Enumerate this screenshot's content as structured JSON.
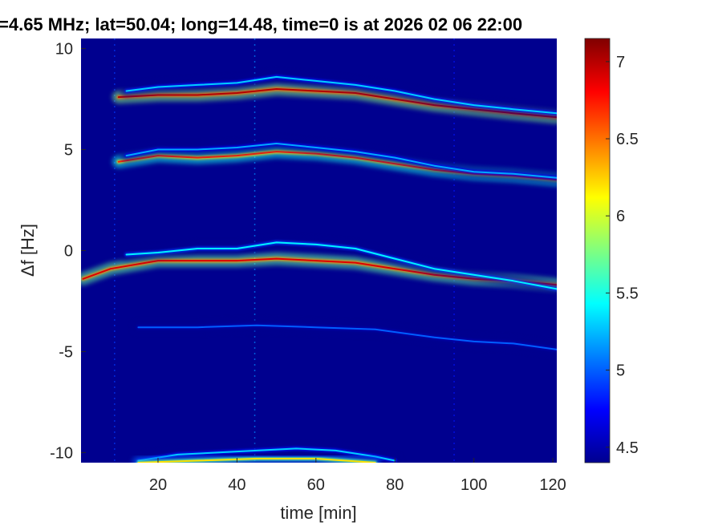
{
  "chart_data": {
    "type": "heatmap",
    "title": "=4.65 MHz;  lat=50.04; long=14.48, time=0 is at 2026 02 06 22:00",
    "xlabel": "time [min]",
    "ylabel": "Δf [Hz]",
    "xlim": [
      0.5,
      121
    ],
    "ylim": [
      -10.5,
      10.5
    ],
    "x_ticks": [
      {
        "value": 20,
        "label": "20"
      },
      {
        "value": 40,
        "label": "40"
      },
      {
        "value": 60,
        "label": "60"
      },
      {
        "value": 80,
        "label": "80"
      },
      {
        "value": 100,
        "label": "100"
      },
      {
        "value": 120,
        "label": "120"
      }
    ],
    "y_ticks": [
      {
        "value": 10,
        "label": "10"
      },
      {
        "value": 5,
        "label": "5"
      },
      {
        "value": 0,
        "label": "0"
      },
      {
        "value": -5,
        "label": "-5"
      },
      {
        "value": -10,
        "label": "-10"
      }
    ],
    "colorbar": {
      "colormap": "jet",
      "clim": [
        4.4,
        7.15
      ],
      "ticks": [
        {
          "value": 7,
          "label": "7"
        },
        {
          "value": 6.5,
          "label": "6.5"
        },
        {
          "value": 6,
          "label": "6"
        },
        {
          "value": 5.5,
          "label": "5.5"
        },
        {
          "value": 5,
          "label": "5"
        },
        {
          "value": 4.5,
          "label": "4.5"
        }
      ]
    },
    "background_color": "#00008f",
    "traces": [
      {
        "name": "",
        "intensity": 7.0,
        "points": [
          [
            10,
            7.6
          ],
          [
            20,
            7.7
          ],
          [
            30,
            7.7
          ],
          [
            40,
            7.8
          ],
          [
            50,
            8.0
          ],
          [
            60,
            7.9
          ],
          [
            70,
            7.8
          ],
          [
            80,
            7.5
          ],
          [
            90,
            7.2
          ],
          [
            100,
            7.0
          ],
          [
            110,
            6.8
          ],
          [
            121,
            6.6
          ]
        ]
      },
      {
        "name": "",
        "intensity": 5.3,
        "points": [
          [
            12,
            7.9
          ],
          [
            20,
            8.1
          ],
          [
            30,
            8.2
          ],
          [
            40,
            8.3
          ],
          [
            50,
            8.6
          ],
          [
            60,
            8.4
          ],
          [
            70,
            8.2
          ],
          [
            80,
            7.9
          ],
          [
            90,
            7.5
          ],
          [
            100,
            7.2
          ],
          [
            110,
            7.0
          ],
          [
            121,
            6.8
          ]
        ]
      },
      {
        "name": "",
        "intensity": 6.7,
        "points": [
          [
            10,
            4.4
          ],
          [
            20,
            4.7
          ],
          [
            30,
            4.6
          ],
          [
            40,
            4.7
          ],
          [
            50,
            4.9
          ],
          [
            60,
            4.8
          ],
          [
            70,
            4.6
          ],
          [
            80,
            4.3
          ],
          [
            90,
            4.0
          ],
          [
            100,
            3.8
          ],
          [
            110,
            3.7
          ],
          [
            121,
            3.5
          ]
        ]
      },
      {
        "name": "",
        "intensity": 5.2,
        "points": [
          [
            12,
            4.7
          ],
          [
            20,
            5.0
          ],
          [
            30,
            5.0
          ],
          [
            40,
            5.1
          ],
          [
            50,
            5.3
          ],
          [
            60,
            5.1
          ],
          [
            70,
            4.9
          ],
          [
            80,
            4.6
          ],
          [
            90,
            4.2
          ],
          [
            100,
            3.9
          ],
          [
            110,
            3.8
          ],
          [
            121,
            3.6
          ]
        ]
      },
      {
        "name": "",
        "intensity": 6.9,
        "points": [
          [
            1,
            -1.4
          ],
          [
            8,
            -0.9
          ],
          [
            20,
            -0.5
          ],
          [
            30,
            -0.5
          ],
          [
            40,
            -0.5
          ],
          [
            50,
            -0.4
          ],
          [
            60,
            -0.5
          ],
          [
            70,
            -0.6
          ],
          [
            80,
            -0.9
          ],
          [
            90,
            -1.2
          ],
          [
            100,
            -1.4
          ],
          [
            110,
            -1.5
          ],
          [
            121,
            -1.7
          ]
        ]
      },
      {
        "name": "",
        "intensity": 5.4,
        "points": [
          [
            12,
            -0.2
          ],
          [
            20,
            -0.1
          ],
          [
            30,
            0.1
          ],
          [
            40,
            0.1
          ],
          [
            50,
            0.4
          ],
          [
            60,
            0.3
          ],
          [
            70,
            0.1
          ],
          [
            80,
            -0.4
          ],
          [
            90,
            -0.9
          ],
          [
            100,
            -1.2
          ],
          [
            110,
            -1.5
          ],
          [
            121,
            -1.9
          ]
        ]
      },
      {
        "name": "",
        "intensity": 5.0,
        "points": [
          [
            15,
            -3.8
          ],
          [
            30,
            -3.8
          ],
          [
            45,
            -3.7
          ],
          [
            60,
            -3.8
          ],
          [
            75,
            -3.9
          ],
          [
            90,
            -4.3
          ],
          [
            100,
            -4.5
          ],
          [
            110,
            -4.6
          ],
          [
            121,
            -4.9
          ]
        ]
      },
      {
        "name": "",
        "intensity": 5.3,
        "points": [
          [
            15,
            -10.4
          ],
          [
            25,
            -10.1
          ],
          [
            35,
            -10.0
          ],
          [
            45,
            -9.9
          ],
          [
            55,
            -9.8
          ],
          [
            65,
            -9.9
          ],
          [
            75,
            -10.2
          ],
          [
            80,
            -10.4
          ]
        ]
      },
      {
        "name": "",
        "intensity": 6.2,
        "points": [
          [
            15,
            -10.5
          ],
          [
            30,
            -10.4
          ],
          [
            45,
            -10.3
          ],
          [
            60,
            -10.3
          ],
          [
            75,
            -10.5
          ]
        ]
      }
    ],
    "vertical_artifacts": [
      {
        "x": 9,
        "intensity": 4.9
      },
      {
        "x": 44.5,
        "intensity": 5.1
      },
      {
        "x": 95,
        "intensity": 4.8
      }
    ]
  }
}
